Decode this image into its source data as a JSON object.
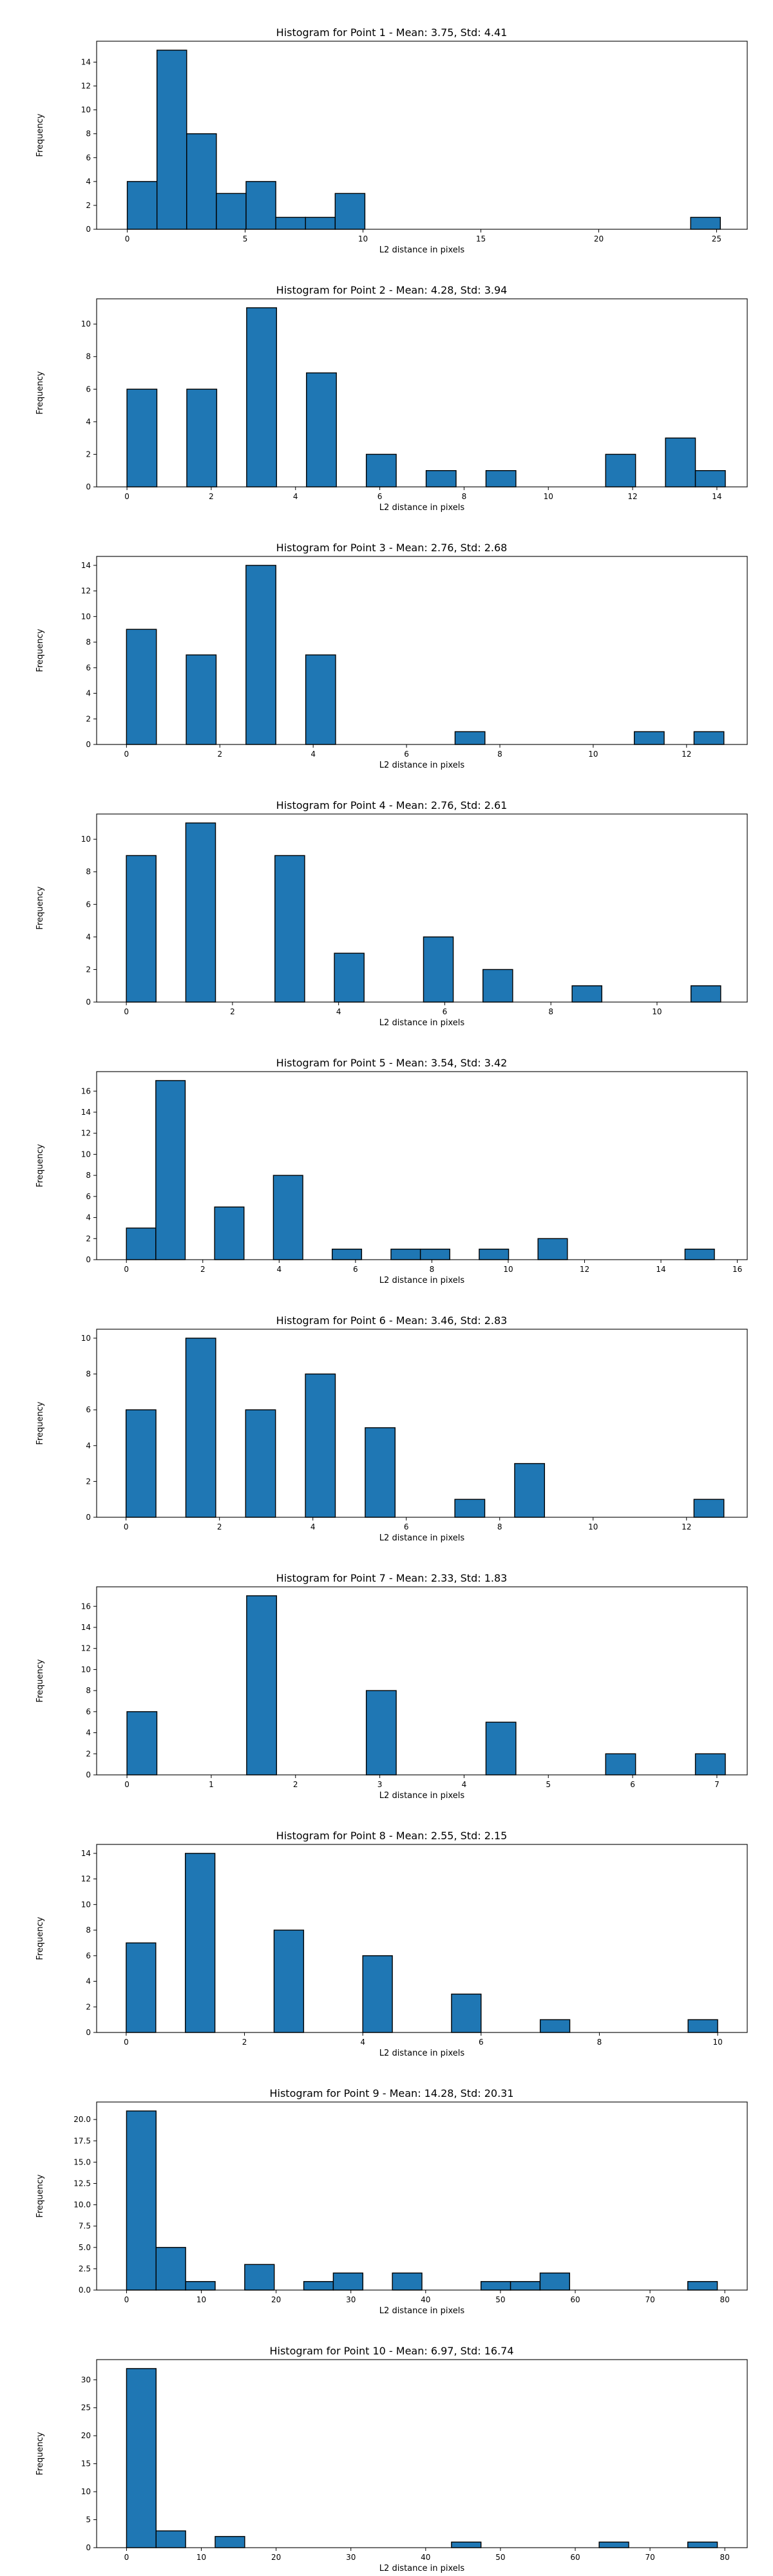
{
  "figure": {
    "bar_color": "#1f77b4",
    "edge_color": "#000000"
  },
  "chart_data": [
    {
      "type": "bar",
      "title": "Histogram for Point 1 - Mean: 3.75, Std: 4.41",
      "xlabel": "L2 distance in pixels",
      "ylabel": "Frequency",
      "xlim": [
        -1.3,
        26.3
      ],
      "ylim": [
        0,
        15.75
      ],
      "xticks": [
        0,
        5,
        10,
        15,
        20,
        25
      ],
      "yticks": [
        0,
        2,
        4,
        6,
        8,
        10,
        12,
        14
      ],
      "grid": false,
      "bins": [
        {
          "x0": 0,
          "x1": 1.26,
          "value": 4
        },
        {
          "x0": 1.26,
          "x1": 2.52,
          "value": 15
        },
        {
          "x0": 2.52,
          "x1": 3.78,
          "value": 8
        },
        {
          "x0": 3.78,
          "x1": 5.04,
          "value": 3
        },
        {
          "x0": 5.04,
          "x1": 6.3,
          "value": 4
        },
        {
          "x0": 6.3,
          "x1": 7.56,
          "value": 1
        },
        {
          "x0": 7.56,
          "x1": 8.82,
          "value": 1
        },
        {
          "x0": 8.82,
          "x1": 10.08,
          "value": 3
        },
        {
          "x0": 23.9,
          "x1": 25.16,
          "value": 1
        }
      ]
    },
    {
      "type": "bar",
      "title": "Histogram for Point 2 - Mean: 4.28, Std: 3.94",
      "xlabel": "L2 distance in pixels",
      "ylabel": "Frequency",
      "xlim": [
        -0.72,
        14.72
      ],
      "ylim": [
        0,
        11.55
      ],
      "xticks": [
        0,
        2,
        4,
        6,
        8,
        10,
        12,
        14
      ],
      "yticks": [
        0,
        2,
        4,
        6,
        8,
        10
      ],
      "grid": false,
      "bins": [
        {
          "x0": 0,
          "x1": 0.71,
          "value": 6
        },
        {
          "x0": 1.42,
          "x1": 2.13,
          "value": 6
        },
        {
          "x0": 2.84,
          "x1": 3.55,
          "value": 11
        },
        {
          "x0": 4.26,
          "x1": 4.97,
          "value": 7
        },
        {
          "x0": 5.68,
          "x1": 6.39,
          "value": 2
        },
        {
          "x0": 7.1,
          "x1": 7.81,
          "value": 1
        },
        {
          "x0": 8.52,
          "x1": 9.23,
          "value": 1
        },
        {
          "x0": 11.36,
          "x1": 12.07,
          "value": 2
        },
        {
          "x0": 12.78,
          "x1": 13.49,
          "value": 3
        },
        {
          "x0": 13.49,
          "x1": 14.2,
          "value": 1
        }
      ]
    },
    {
      "type": "bar",
      "title": "Histogram for Point 3 - Mean: 2.76, Std: 2.68",
      "xlabel": "L2 distance in pixels",
      "ylabel": "Frequency",
      "xlim": [
        -0.64,
        13.3
      ],
      "ylim": [
        0,
        14.7
      ],
      "xticks": [
        0,
        2,
        4,
        6,
        8,
        10,
        12
      ],
      "yticks": [
        0,
        2,
        4,
        6,
        8,
        10,
        12,
        14
      ],
      "grid": false,
      "bins": [
        {
          "x0": 0,
          "x1": 0.64,
          "value": 9
        },
        {
          "x0": 1.28,
          "x1": 1.92,
          "value": 7
        },
        {
          "x0": 2.56,
          "x1": 3.2,
          "value": 14
        },
        {
          "x0": 3.84,
          "x1": 4.48,
          "value": 7
        },
        {
          "x0": 7.04,
          "x1": 7.68,
          "value": 1
        },
        {
          "x0": 10.88,
          "x1": 11.52,
          "value": 1
        },
        {
          "x0": 12.16,
          "x1": 12.8,
          "value": 1
        }
      ]
    },
    {
      "type": "bar",
      "title": "Histogram for Point 4 - Mean: 2.76, Std: 2.61",
      "xlabel": "L2 distance in pixels",
      "ylabel": "Frequency",
      "xlim": [
        -0.56,
        11.7
      ],
      "ylim": [
        0,
        11.55
      ],
      "xticks": [
        0,
        2,
        4,
        6,
        8,
        10
      ],
      "yticks": [
        0,
        2,
        4,
        6,
        8,
        10
      ],
      "grid": false,
      "bins": [
        {
          "x0": 0,
          "x1": 0.56,
          "value": 9
        },
        {
          "x0": 1.12,
          "x1": 1.68,
          "value": 11
        },
        {
          "x0": 2.8,
          "x1": 3.36,
          "value": 9
        },
        {
          "x0": 3.92,
          "x1": 4.48,
          "value": 3
        },
        {
          "x0": 5.6,
          "x1": 6.16,
          "value": 4
        },
        {
          "x0": 6.72,
          "x1": 7.28,
          "value": 2
        },
        {
          "x0": 8.4,
          "x1": 8.96,
          "value": 1
        },
        {
          "x0": 10.64,
          "x1": 11.2,
          "value": 1
        }
      ]
    },
    {
      "type": "bar",
      "title": "Histogram for Point 5 - Mean: 3.54, Std: 3.42",
      "xlabel": "L2 distance in pixels",
      "ylabel": "Frequency",
      "xlim": [
        -0.78,
        16.26
      ],
      "ylim": [
        0,
        17.85
      ],
      "xticks": [
        0,
        2,
        4,
        6,
        8,
        10,
        12,
        14,
        16
      ],
      "yticks": [
        0,
        2,
        4,
        6,
        8,
        10,
        12,
        14,
        16
      ],
      "grid": false,
      "bins": [
        {
          "x0": 0,
          "x1": 0.77,
          "value": 3
        },
        {
          "x0": 0.77,
          "x1": 1.54,
          "value": 17
        },
        {
          "x0": 2.31,
          "x1": 3.08,
          "value": 5
        },
        {
          "x0": 3.85,
          "x1": 4.62,
          "value": 8
        },
        {
          "x0": 5.39,
          "x1": 6.16,
          "value": 1
        },
        {
          "x0": 6.93,
          "x1": 7.7,
          "value": 1
        },
        {
          "x0": 7.7,
          "x1": 8.47,
          "value": 1
        },
        {
          "x0": 9.24,
          "x1": 10.01,
          "value": 1
        },
        {
          "x0": 10.78,
          "x1": 11.55,
          "value": 2
        },
        {
          "x0": 14.63,
          "x1": 15.4,
          "value": 1
        }
      ]
    },
    {
      "type": "bar",
      "title": "Histogram for Point 6 - Mean: 3.46, Std: 2.83",
      "xlabel": "L2 distance in pixels",
      "ylabel": "Frequency",
      "xlim": [
        -0.63,
        13.3
      ],
      "ylim": [
        0,
        10.5
      ],
      "xticks": [
        0,
        2,
        4,
        6,
        8,
        10,
        12
      ],
      "yticks": [
        0,
        2,
        4,
        6,
        8,
        10
      ],
      "grid": false,
      "bins": [
        {
          "x0": 0,
          "x1": 0.64,
          "value": 6
        },
        {
          "x0": 1.28,
          "x1": 1.92,
          "value": 10
        },
        {
          "x0": 2.56,
          "x1": 3.2,
          "value": 6
        },
        {
          "x0": 3.84,
          "x1": 4.48,
          "value": 8
        },
        {
          "x0": 5.12,
          "x1": 5.76,
          "value": 5
        },
        {
          "x0": 7.04,
          "x1": 7.68,
          "value": 1
        },
        {
          "x0": 8.32,
          "x1": 8.96,
          "value": 3
        },
        {
          "x0": 12.16,
          "x1": 12.8,
          "value": 1
        }
      ]
    },
    {
      "type": "bar",
      "title": "Histogram for Point 7 - Mean: 2.33, Std: 1.83",
      "xlabel": "L2 distance in pixels",
      "ylabel": "Frequency",
      "xlim": [
        -0.36,
        7.36
      ],
      "ylim": [
        0,
        17.85
      ],
      "xticks": [
        0,
        1,
        2,
        3,
        4,
        5,
        6,
        7
      ],
      "yticks": [
        0,
        2,
        4,
        6,
        8,
        10,
        12,
        14,
        16
      ],
      "grid": false,
      "bins": [
        {
          "x0": 0,
          "x1": 0.355,
          "value": 6
        },
        {
          "x0": 1.42,
          "x1": 1.775,
          "value": 17
        },
        {
          "x0": 2.84,
          "x1": 3.195,
          "value": 8
        },
        {
          "x0": 4.26,
          "x1": 4.615,
          "value": 5
        },
        {
          "x0": 5.68,
          "x1": 6.035,
          "value": 2
        },
        {
          "x0": 6.745,
          "x1": 7.1,
          "value": 2
        }
      ]
    },
    {
      "type": "bar",
      "title": "Histogram for Point 8 - Mean: 2.55, Std: 2.15",
      "xlabel": "L2 distance in pixels",
      "ylabel": "Frequency",
      "xlim": [
        -0.5,
        10.5
      ],
      "ylim": [
        0,
        14.7
      ],
      "xticks": [
        0,
        2,
        4,
        6,
        8,
        10
      ],
      "yticks": [
        0,
        2,
        4,
        6,
        8,
        10,
        12,
        14
      ],
      "grid": false,
      "bins": [
        {
          "x0": 0,
          "x1": 0.5,
          "value": 7
        },
        {
          "x0": 1,
          "x1": 1.5,
          "value": 14
        },
        {
          "x0": 2.5,
          "x1": 3,
          "value": 8
        },
        {
          "x0": 4,
          "x1": 4.5,
          "value": 6
        },
        {
          "x0": 5.5,
          "x1": 6,
          "value": 3
        },
        {
          "x0": 7,
          "x1": 7.5,
          "value": 1
        },
        {
          "x0": 9.5,
          "x1": 10,
          "value": 1
        }
      ]
    },
    {
      "type": "bar",
      "title": "Histogram for Point 9 - Mean: 14.28, Std: 20.31",
      "xlabel": "L2 distance in pixels",
      "ylabel": "Frequency",
      "xlim": [
        -4,
        83
      ],
      "ylim": [
        0,
        22.05
      ],
      "xticks": [
        0,
        10,
        20,
        30,
        40,
        50,
        60,
        70,
        80
      ],
      "yticks": [
        "0.0",
        "2.5",
        "5.0",
        "7.5",
        "10.0",
        "12.5",
        "15.0",
        "17.5",
        "20.0"
      ],
      "grid": false,
      "bins": [
        {
          "x0": 0,
          "x1": 3.95,
          "value": 21
        },
        {
          "x0": 3.95,
          "x1": 7.9,
          "value": 5
        },
        {
          "x0": 7.9,
          "x1": 11.85,
          "value": 1
        },
        {
          "x0": 15.8,
          "x1": 19.75,
          "value": 3
        },
        {
          "x0": 23.7,
          "x1": 27.65,
          "value": 1
        },
        {
          "x0": 27.65,
          "x1": 31.6,
          "value": 2
        },
        {
          "x0": 35.55,
          "x1": 39.5,
          "value": 2
        },
        {
          "x0": 47.4,
          "x1": 51.35,
          "value": 1
        },
        {
          "x0": 51.35,
          "x1": 55.3,
          "value": 1
        },
        {
          "x0": 55.3,
          "x1": 59.25,
          "value": 2
        },
        {
          "x0": 75.05,
          "x1": 79,
          "value": 1
        }
      ]
    },
    {
      "type": "bar",
      "title": "Histogram for Point 10 - Mean: 6.97, Std: 16.74",
      "xlabel": "L2 distance in pixels",
      "ylabel": "Frequency",
      "xlim": [
        -4,
        83
      ],
      "ylim": [
        0,
        33.6
      ],
      "xticks": [
        0,
        10,
        20,
        30,
        40,
        50,
        60,
        70,
        80
      ],
      "yticks": [
        0,
        5,
        10,
        15,
        20,
        25,
        30
      ],
      "grid": false,
      "bins": [
        {
          "x0": 0,
          "x1": 3.95,
          "value": 32
        },
        {
          "x0": 3.95,
          "x1": 7.9,
          "value": 3
        },
        {
          "x0": 11.85,
          "x1": 15.8,
          "value": 2
        },
        {
          "x0": 43.45,
          "x1": 47.4,
          "value": 1
        },
        {
          "x0": 63.2,
          "x1": 67.15,
          "value": 1
        },
        {
          "x0": 75.05,
          "x1": 79,
          "value": 1
        }
      ]
    }
  ]
}
